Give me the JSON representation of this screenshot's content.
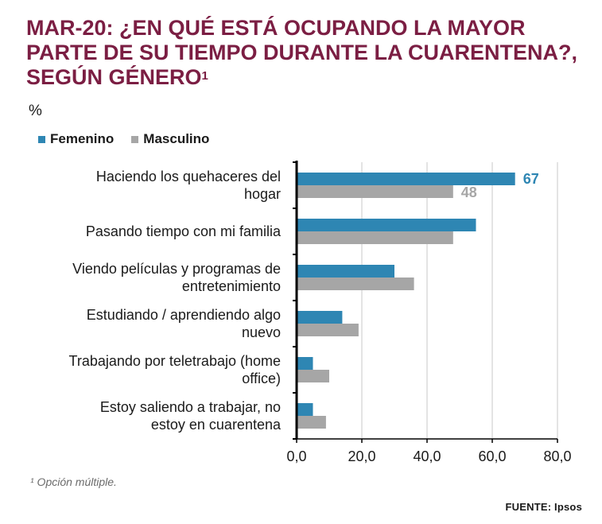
{
  "title_main": "MAR-20: ¿EN QUÉ ESTÁ OCUPANDO LA MAYOR PARTE DE SU TIEMPO DURANTE LA CUARENTENA?, SEGÚN GÉNERO",
  "title_sup": "1",
  "unit_label": "%",
  "legend": {
    "femenino": "Femenino",
    "masculino": "Masculino"
  },
  "footnote": "¹ Opción múltiple.",
  "source": "FUENTE: Ipsos",
  "colors": {
    "femenino": "#2e86b3",
    "masculino": "#a6a6a6",
    "title": "#7b1e43"
  },
  "chart_data": {
    "type": "bar",
    "orientation": "horizontal",
    "categories": [
      [
        "Haciendo los quehaceres del",
        "hogar"
      ],
      [
        "Pasando tiempo con mi familia"
      ],
      [
        "Viendo películas y programas de",
        "entretenimiento"
      ],
      [
        "Estudiando / aprendiendo algo",
        "nuevo"
      ],
      [
        "Trabajando por teletrabajo (home",
        "office)"
      ],
      [
        "Estoy saliendo a trabajar, no",
        "estoy en cuarentena"
      ]
    ],
    "series": [
      {
        "name": "Femenino",
        "values": [
          67,
          55,
          30,
          14,
          5,
          5
        ]
      },
      {
        "name": "Masculino",
        "values": [
          48,
          48,
          36,
          19,
          10,
          9
        ]
      }
    ],
    "data_labels": [
      {
        "series": 0,
        "index": 0,
        "text": "67"
      },
      {
        "series": 1,
        "index": 0,
        "text": "48"
      }
    ],
    "xlim": [
      0,
      80
    ],
    "xticks": [
      0,
      20,
      40,
      60,
      80
    ],
    "xtick_labels": [
      "0,0",
      "20,0",
      "40,0",
      "60,0",
      "80,0"
    ],
    "grid": true,
    "legend_position": "top-left"
  }
}
